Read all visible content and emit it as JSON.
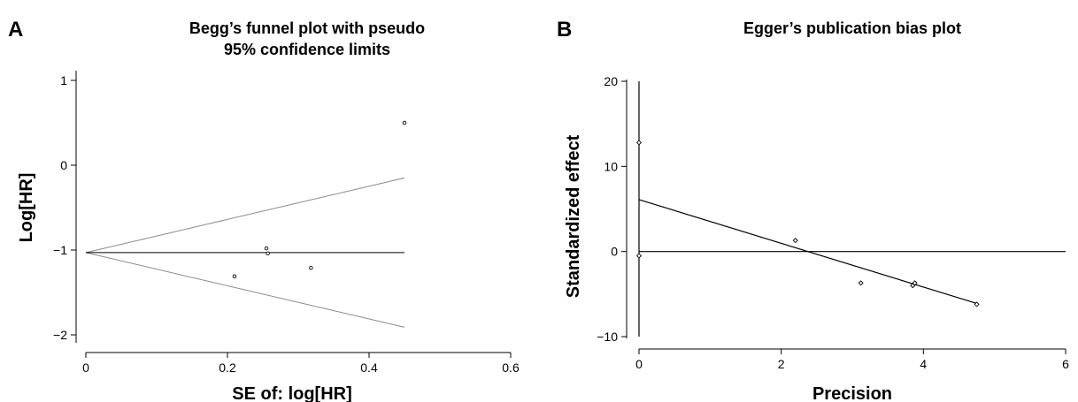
{
  "panels": {
    "a": {
      "letter": "A",
      "title_line1": "Begg’s funnel plot with pseudo",
      "title_line2": "95% confidence limits",
      "ylabel": "Log[HR]",
      "xlabel": "SE of: log[HR]"
    },
    "b": {
      "letter": "B",
      "title": "Egger’s publication bias plot",
      "ylabel": "Standardized effect",
      "xlabel": "Precision"
    }
  },
  "chart_data": [
    {
      "type": "scatter",
      "title": "Begg’s funnel plot with pseudo 95% confidence limits",
      "xlabel": "SE of: log[HR]",
      "ylabel": "Log[HR]",
      "xlim": [
        0,
        0.6
      ],
      "ylim": [
        -2,
        1
      ],
      "x_ticks": [
        0,
        0.2,
        0.4,
        0.6
      ],
      "x_tick_labels": [
        "0",
        "0.2",
        "0.4",
        "0.6"
      ],
      "y_ticks": [
        1,
        0,
        -1,
        -2
      ],
      "y_tick_labels": [
        "1",
        "0",
        "−1",
        "−2"
      ],
      "points": [
        {
          "x": 0.21,
          "y": -1.31
        },
        {
          "x": 0.255,
          "y": -0.98
        },
        {
          "x": 0.257,
          "y": -1.04
        },
        {
          "x": 0.318,
          "y": -1.21
        },
        {
          "x": 0.45,
          "y": 0.5
        }
      ],
      "pooled_estimate": -1.03,
      "funnel": {
        "se_max": 0.45,
        "upper": -0.15,
        "lower": -1.91
      },
      "colors": {
        "points": "#000000",
        "funnel": "#8a8a8a",
        "pooled": "#000000"
      }
    },
    {
      "type": "scatter",
      "title": "Egger’s publication bias plot",
      "xlabel": "Precision",
      "ylabel": "Standardized effect",
      "xlim": [
        0,
        6
      ],
      "ylim": [
        -10,
        20
      ],
      "x_ticks": [
        0,
        2,
        4,
        6
      ],
      "x_tick_labels": [
        "0",
        "2",
        "4",
        "6"
      ],
      "y_ticks": [
        20,
        10,
        0,
        -10
      ],
      "y_tick_labels": [
        "20",
        "10",
        "0",
        "−10"
      ],
      "points": [
        {
          "x": 0.0,
          "y": 12.8
        },
        {
          "x": 0.0,
          "y": -0.5
        },
        {
          "x": 2.2,
          "y": 1.3
        },
        {
          "x": 3.12,
          "y": -3.7
        },
        {
          "x": 3.85,
          "y": -4.0
        },
        {
          "x": 3.88,
          "y": -3.7
        },
        {
          "x": 4.75,
          "y": -6.2
        }
      ],
      "regression": {
        "x": [
          0,
          4.75
        ],
        "y": [
          6.1,
          -6.1
        ]
      },
      "intercept_ci": [
        -10,
        20
      ],
      "reference_y": 0,
      "colors": {
        "points": "#000000",
        "lines": "#000000"
      }
    }
  ]
}
